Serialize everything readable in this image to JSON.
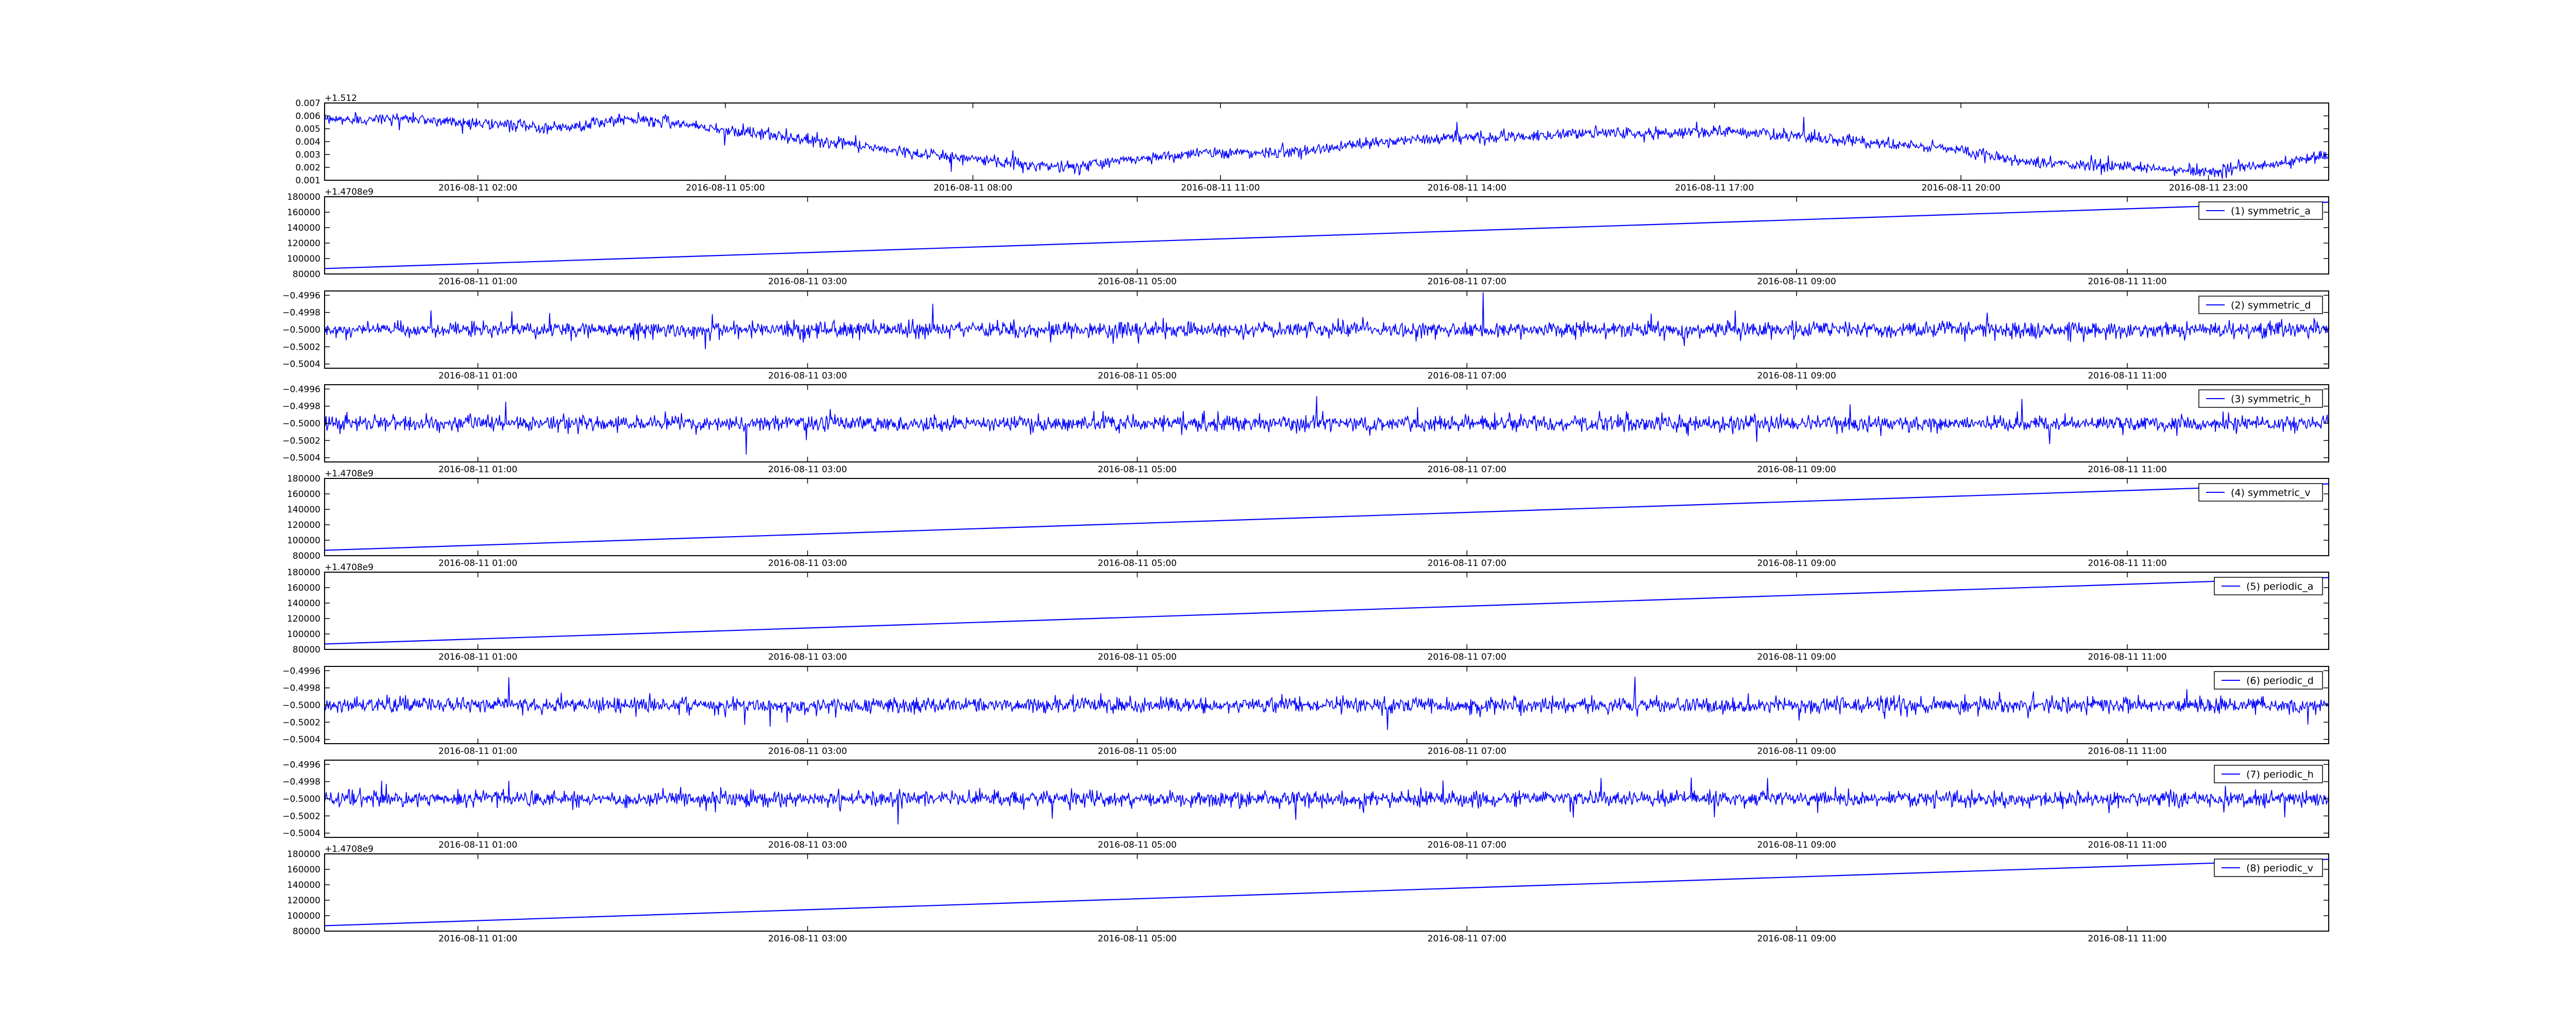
{
  "chart_data": [
    {
      "type": "line",
      "title": "",
      "xlabel": "",
      "ylabel": "",
      "y_offset_label": "+1.512",
      "xticks": [
        "2016-08-11 02:00",
        "2016-08-11 05:00",
        "2016-08-11 08:00",
        "2016-08-11 11:00",
        "2016-08-11 14:00",
        "2016-08-11 17:00",
        "2016-08-11 20:00",
        "2016-08-11 23:00"
      ],
      "yticks": [
        "0.001",
        "0.002",
        "0.003",
        "0.004",
        "0.005",
        "0.006",
        "0.007"
      ],
      "ylim": [
        0.001,
        0.007
      ],
      "grid": false,
      "legend": null,
      "series": [
        {
          "color": "#0000ff",
          "noise": 0.0005,
          "x": [
            0,
            0.04,
            0.07,
            0.1,
            0.12,
            0.15,
            0.17,
            0.2,
            0.24,
            0.27,
            0.3,
            0.34,
            0.37,
            0.4,
            0.44,
            0.47,
            0.5,
            0.53,
            0.56,
            0.6,
            0.63,
            0.66,
            0.7,
            0.73,
            0.76,
            0.79,
            0.82,
            0.85,
            0.88,
            0.91,
            0.94,
            0.97,
            1.0
          ],
          "values": [
            0.0057,
            0.0058,
            0.0055,
            0.0052,
            0.0051,
            0.0057,
            0.0056,
            0.0049,
            0.0042,
            0.0036,
            0.003,
            0.0024,
            0.002,
            0.0026,
            0.0032,
            0.0031,
            0.0035,
            0.004,
            0.0043,
            0.0044,
            0.0047,
            0.0046,
            0.0048,
            0.0045,
            0.0041,
            0.0037,
            0.0033,
            0.0024,
            0.0022,
            0.0019,
            0.0017,
            0.0022,
            0.0029
          ]
        }
      ]
    },
    {
      "type": "line",
      "y_offset_label": "+1.4708e9",
      "xticks": [
        "2016-08-11 01:00",
        "2016-08-11 03:00",
        "2016-08-11 05:00",
        "2016-08-11 07:00",
        "2016-08-11 09:00",
        "2016-08-11 11:00"
      ],
      "yticks": [
        "80000",
        "100000",
        "120000",
        "140000",
        "160000",
        "180000"
      ],
      "ylim": [
        80000,
        180000
      ],
      "grid": false,
      "legend": "upper right",
      "series": [
        {
          "name": "(1) symmetric_a",
          "color": "#0000ff",
          "x": [
            0,
            1
          ],
          "values": [
            87000,
            173000
          ]
        }
      ]
    },
    {
      "type": "line",
      "y_offset_label": "",
      "xticks": [
        "2016-08-11 01:00",
        "2016-08-11 03:00",
        "2016-08-11 05:00",
        "2016-08-11 07:00",
        "2016-08-11 09:00",
        "2016-08-11 11:00"
      ],
      "yticks": [
        "−0.5004",
        "−0.5002",
        "−0.5000",
        "−0.4998",
        "−0.4996"
      ],
      "ylim": [
        -0.50045,
        -0.49955
      ],
      "grid": false,
      "legend": "upper right",
      "series": [
        {
          "name": "(2) symmetric_d",
          "color": "#0000ff",
          "noise": 0.0001,
          "x": [
            0,
            1
          ],
          "values": [
            -0.5,
            -0.5
          ]
        }
      ]
    },
    {
      "type": "line",
      "y_offset_label": "",
      "xticks": [
        "2016-08-11 01:00",
        "2016-08-11 03:00",
        "2016-08-11 05:00",
        "2016-08-11 07:00",
        "2016-08-11 09:00",
        "2016-08-11 11:00"
      ],
      "yticks": [
        "−0.5004",
        "−0.5002",
        "−0.5000",
        "−0.4998",
        "−0.4996"
      ],
      "ylim": [
        -0.50045,
        -0.49955
      ],
      "grid": false,
      "legend": "upper right",
      "series": [
        {
          "name": "(3) symmetric_h",
          "color": "#0000ff",
          "noise": 0.0001,
          "x": [
            0,
            1
          ],
          "values": [
            -0.5,
            -0.5
          ]
        }
      ]
    },
    {
      "type": "line",
      "y_offset_label": "+1.4708e9",
      "xticks": [
        "2016-08-11 01:00",
        "2016-08-11 03:00",
        "2016-08-11 05:00",
        "2016-08-11 07:00",
        "2016-08-11 09:00",
        "2016-08-11 11:00"
      ],
      "yticks": [
        "80000",
        "100000",
        "120000",
        "140000",
        "160000",
        "180000"
      ],
      "ylim": [
        80000,
        180000
      ],
      "grid": false,
      "legend": "upper right",
      "series": [
        {
          "name": "(4) symmetric_v",
          "color": "#0000ff",
          "x": [
            0,
            1
          ],
          "values": [
            87000,
            173000
          ]
        }
      ]
    },
    {
      "type": "line",
      "y_offset_label": "+1.4708e9",
      "xticks": [
        "2016-08-11 01:00",
        "2016-08-11 03:00",
        "2016-08-11 05:00",
        "2016-08-11 07:00",
        "2016-08-11 09:00",
        "2016-08-11 11:00"
      ],
      "yticks": [
        "80000",
        "100000",
        "120000",
        "140000",
        "160000",
        "180000"
      ],
      "ylim": [
        80000,
        180000
      ],
      "grid": false,
      "legend": "upper right",
      "series": [
        {
          "name": "(5) periodic_a",
          "color": "#0000ff",
          "x": [
            0,
            1
          ],
          "values": [
            87000,
            173000
          ]
        }
      ]
    },
    {
      "type": "line",
      "y_offset_label": "",
      "xticks": [
        "2016-08-11 01:00",
        "2016-08-11 03:00",
        "2016-08-11 05:00",
        "2016-08-11 07:00",
        "2016-08-11 09:00",
        "2016-08-11 11:00"
      ],
      "yticks": [
        "−0.5004",
        "−0.5002",
        "−0.5000",
        "−0.4998",
        "−0.4996"
      ],
      "ylim": [
        -0.50045,
        -0.49955
      ],
      "grid": false,
      "legend": "upper right",
      "series": [
        {
          "name": "(6) periodic_d",
          "color": "#0000ff",
          "noise": 0.0001,
          "x": [
            0,
            1
          ],
          "values": [
            -0.5,
            -0.5
          ]
        }
      ]
    },
    {
      "type": "line",
      "y_offset_label": "",
      "xticks": [
        "2016-08-11 01:00",
        "2016-08-11 03:00",
        "2016-08-11 05:00",
        "2016-08-11 07:00",
        "2016-08-11 09:00",
        "2016-08-11 11:00"
      ],
      "yticks": [
        "−0.5004",
        "−0.5002",
        "−0.5000",
        "−0.4998",
        "−0.4996"
      ],
      "ylim": [
        -0.50045,
        -0.49955
      ],
      "grid": false,
      "legend": "upper right",
      "series": [
        {
          "name": "(7) periodic_h",
          "color": "#0000ff",
          "noise": 0.0001,
          "x": [
            0,
            1
          ],
          "values": [
            -0.5,
            -0.5
          ]
        }
      ]
    },
    {
      "type": "line",
      "y_offset_label": "+1.4708e9",
      "xticks": [
        "2016-08-11 01:00",
        "2016-08-11 03:00",
        "2016-08-11 05:00",
        "2016-08-11 07:00",
        "2016-08-11 09:00",
        "2016-08-11 11:00"
      ],
      "yticks": [
        "80000",
        "100000",
        "120000",
        "140000",
        "160000",
        "180000"
      ],
      "ylim": [
        80000,
        180000
      ],
      "grid": false,
      "legend": "upper right",
      "series": [
        {
          "name": "(8) periodic_v",
          "color": "#0000ff",
          "x": [
            0,
            1
          ],
          "values": [
            87000,
            173000
          ]
        }
      ]
    }
  ]
}
